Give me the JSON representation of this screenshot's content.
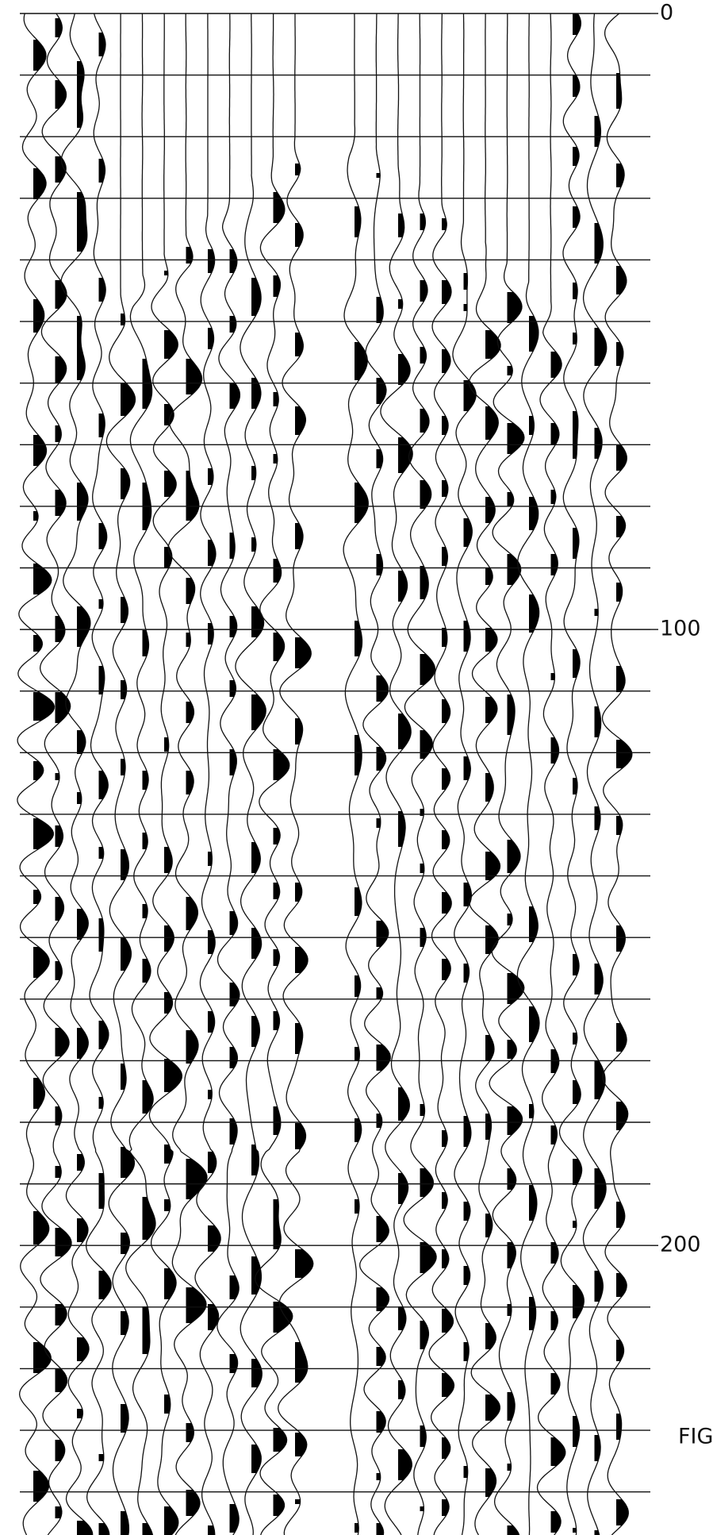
{
  "seismic_record": {
    "time_axis": {
      "range": [
        0,
        247
      ],
      "ticks": [
        0,
        100,
        200
      ],
      "timing_lines": [
        0,
        10,
        20,
        30,
        40,
        50,
        60,
        70,
        80,
        90,
        100,
        110,
        120,
        130,
        140,
        150,
        160,
        170,
        180,
        190,
        200,
        210,
        220,
        230,
        240
      ]
    },
    "caption": "FIG"
  }
}
